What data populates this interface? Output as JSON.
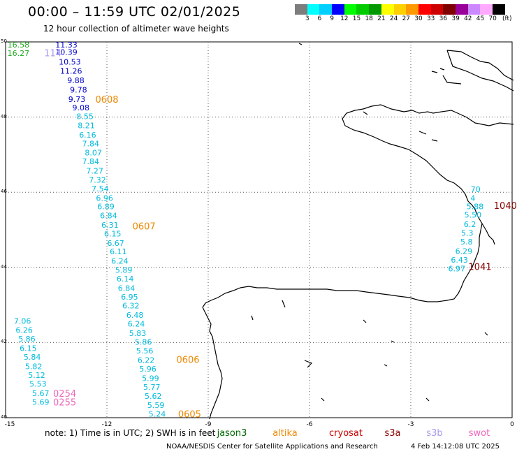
{
  "header": {
    "title": "00:00 – 11:59 UTC 02/01/2025",
    "subtitle": "12 hour collection of altimeter wave heights"
  },
  "colorbar": {
    "unit": "(ft)",
    "colors": [
      "#7d7d7d",
      "#00ffff",
      "#00cfff",
      "#0000ff",
      "#00ff00",
      "#00cc00",
      "#009900",
      "#ffff00",
      "#ffd000",
      "#ff9900",
      "#ff0000",
      "#cc0000",
      "#800000",
      "#990099",
      "#cc88ff",
      "#ffaaff",
      "#000000"
    ],
    "labels": [
      "3",
      "6",
      "9",
      "12",
      "15",
      "18",
      "21",
      "24",
      "27",
      "30",
      "33",
      "36",
      "39",
      "42",
      "45",
      "70"
    ]
  },
  "map": {
    "lon_range": [
      -15,
      0
    ],
    "lat_range": [
      40,
      50
    ],
    "lat_labels": [
      "50",
      "48",
      "46",
      "44",
      "42",
      "40"
    ],
    "lon_labels": [
      "-15",
      "-12",
      "-9",
      "-6",
      "-3",
      "0"
    ],
    "grid": "dotted"
  },
  "tracks": [
    {
      "color": "#0000cc",
      "points": [
        {
          "lat": 49.93,
          "lon": -13.2,
          "v": "11.33"
        },
        {
          "lat": 49.73,
          "lon": -13.2,
          "v": "10.39"
        },
        {
          "lat": 49.47,
          "lon": -13.1,
          "v": "10.53"
        },
        {
          "lat": 49.23,
          "lon": -13.06,
          "v": "11.26"
        },
        {
          "lat": 48.98,
          "lon": -12.92,
          "v": "9.88"
        },
        {
          "lat": 48.73,
          "lon": -12.84,
          "v": "9.78"
        },
        {
          "lat": 48.48,
          "lon": -12.89,
          "v": "9.73"
        },
        {
          "lat": 48.25,
          "lon": -12.77,
          "v": "9.08"
        }
      ]
    },
    {
      "color": "#00bbdd",
      "points": [
        {
          "lat": 48.02,
          "lon": -12.65,
          "v": "8.55"
        },
        {
          "lat": 47.78,
          "lon": -12.61,
          "v": "8.21"
        },
        {
          "lat": 47.53,
          "lon": -12.57,
          "v": "6.16"
        },
        {
          "lat": 47.3,
          "lon": -12.48,
          "v": "7.84"
        },
        {
          "lat": 47.05,
          "lon": -12.4,
          "v": "8.07"
        },
        {
          "lat": 46.82,
          "lon": -12.48,
          "v": "7.84"
        },
        {
          "lat": 46.57,
          "lon": -12.36,
          "v": "7.27"
        },
        {
          "lat": 46.33,
          "lon": -12.28,
          "v": "7.32"
        },
        {
          "lat": 46.1,
          "lon": -12.2,
          "v": "7.54"
        },
        {
          "lat": 45.85,
          "lon": -12.07,
          "v": "6.96"
        },
        {
          "lat": 45.62,
          "lon": -12.03,
          "v": "6.89"
        },
        {
          "lat": 45.38,
          "lon": -11.95,
          "v": "6.84"
        },
        {
          "lat": 45.13,
          "lon": -11.91,
          "v": "6.31"
        },
        {
          "lat": 44.9,
          "lon": -11.83,
          "v": "6.15"
        },
        {
          "lat": 44.65,
          "lon": -11.74,
          "v": "6.67"
        },
        {
          "lat": 44.42,
          "lon": -11.66,
          "v": "6.11"
        },
        {
          "lat": 44.17,
          "lon": -11.62,
          "v": "6.24"
        },
        {
          "lat": 43.93,
          "lon": -11.5,
          "v": "5.89"
        },
        {
          "lat": 43.7,
          "lon": -11.46,
          "v": "6.14"
        },
        {
          "lat": 43.45,
          "lon": -11.42,
          "v": "6.84"
        },
        {
          "lat": 43.22,
          "lon": -11.33,
          "v": "6.95"
        },
        {
          "lat": 42.98,
          "lon": -11.29,
          "v": "6.32"
        },
        {
          "lat": 42.73,
          "lon": -11.17,
          "v": "6.48"
        },
        {
          "lat": 42.5,
          "lon": -11.13,
          "v": "6.24"
        },
        {
          "lat": 42.25,
          "lon": -11.09,
          "v": "5.83"
        },
        {
          "lat": 42.02,
          "lon": -10.92,
          "v": "5.86"
        },
        {
          "lat": 41.78,
          "lon": -10.88,
          "v": "5.56"
        },
        {
          "lat": 41.53,
          "lon": -10.84,
          "v": "6.22"
        },
        {
          "lat": 41.3,
          "lon": -10.79,
          "v": "5.96"
        },
        {
          "lat": 41.05,
          "lon": -10.71,
          "v": "5.99"
        },
        {
          "lat": 40.82,
          "lon": -10.67,
          "v": "5.77"
        },
        {
          "lat": 40.58,
          "lon": -10.63,
          "v": "5.62"
        },
        {
          "lat": 40.33,
          "lon": -10.55,
          "v": "5.59"
        },
        {
          "lat": 40.1,
          "lon": -10.51,
          "v": "5.24"
        }
      ]
    },
    {
      "color": "#00bbdd",
      "points": [
        {
          "lat": 42.57,
          "lon": -14.5,
          "v": "7.06"
        },
        {
          "lat": 42.33,
          "lon": -14.45,
          "v": "6.26"
        },
        {
          "lat": 42.1,
          "lon": -14.37,
          "v": "5.86"
        },
        {
          "lat": 41.85,
          "lon": -14.33,
          "v": "6.15"
        },
        {
          "lat": 41.62,
          "lon": -14.21,
          "v": "5.84"
        },
        {
          "lat": 41.37,
          "lon": -14.17,
          "v": "5.82"
        },
        {
          "lat": 41.13,
          "lon": -14.08,
          "v": "5.12"
        },
        {
          "lat": 40.9,
          "lon": -14.04,
          "v": "5.53"
        },
        {
          "lat": 40.65,
          "lon": -13.96,
          "v": "5.67"
        },
        {
          "lat": 40.42,
          "lon": -13.96,
          "v": "5.69"
        }
      ]
    },
    {
      "color": "#00bbdd",
      "points": [
        {
          "lat": 46.08,
          "lon": -1.08,
          "v": "70"
        },
        {
          "lat": 45.85,
          "lon": -1.16,
          "v": "4"
        },
        {
          "lat": 45.62,
          "lon": -1.1,
          "v": "5.88"
        },
        {
          "lat": 45.4,
          "lon": -1.16,
          "v": "5.50"
        },
        {
          "lat": 45.15,
          "lon": -1.25,
          "v": "6.2"
        },
        {
          "lat": 44.92,
          "lon": -1.33,
          "v": "5.3"
        },
        {
          "lat": 44.68,
          "lon": -1.35,
          "v": "5.8"
        },
        {
          "lat": 44.43,
          "lon": -1.43,
          "v": "6.29"
        },
        {
          "lat": 44.2,
          "lon": -1.56,
          "v": "6.43"
        },
        {
          "lat": 43.97,
          "lon": -1.64,
          "v": "6.97"
        }
      ]
    },
    {
      "color": "#22aa22",
      "points": [
        {
          "lat": 49.93,
          "lon": -14.62,
          "v": "16.58"
        },
        {
          "lat": 49.7,
          "lon": -14.62,
          "v": "16.27"
        }
      ]
    }
  ],
  "pass_labels": [
    {
      "text": "114",
      "lat": 49.71,
      "lon": -13.6,
      "color": "#aa99ee"
    },
    {
      "text": "0608",
      "lat": 48.48,
      "lon": -12.0,
      "color": "#ee8800"
    },
    {
      "text": "0607",
      "lat": 45.1,
      "lon": -10.9,
      "color": "#ee8800"
    },
    {
      "text": "0606",
      "lat": 41.55,
      "lon": -9.6,
      "color": "#ee8800"
    },
    {
      "text": "0605",
      "lat": 40.1,
      "lon": -9.55,
      "color": "#ee8800"
    },
    {
      "text": "0254",
      "lat": 40.65,
      "lon": -13.25,
      "color": "#ee66bb"
    },
    {
      "text": "0255",
      "lat": 40.42,
      "lon": -13.25,
      "color": "#ee66bb"
    },
    {
      "text": "1040",
      "lat": 45.65,
      "lon": -0.2,
      "color": "#880000"
    },
    {
      "text": "1041",
      "lat": 44.02,
      "lon": -0.95,
      "color": "#880000"
    }
  ],
  "footer": {
    "note": "note:  1) Time is in UTC; 2) SWH is in feet",
    "legend": [
      {
        "name": "jason3",
        "color": "#006600"
      },
      {
        "name": "altika",
        "color": "#ee8800"
      },
      {
        "name": "cryosat",
        "color": "#cc0000"
      },
      {
        "name": "s3a",
        "color": "#880000"
      },
      {
        "name": "s3b",
        "color": "#aa99ee"
      },
      {
        "name": "swot",
        "color": "#ee66bb"
      }
    ],
    "credit": "NOAA/NESDIS Center for Satellite Applications and Research",
    "timestamp": "4 Feb 14:12:08 UTC 2025"
  }
}
